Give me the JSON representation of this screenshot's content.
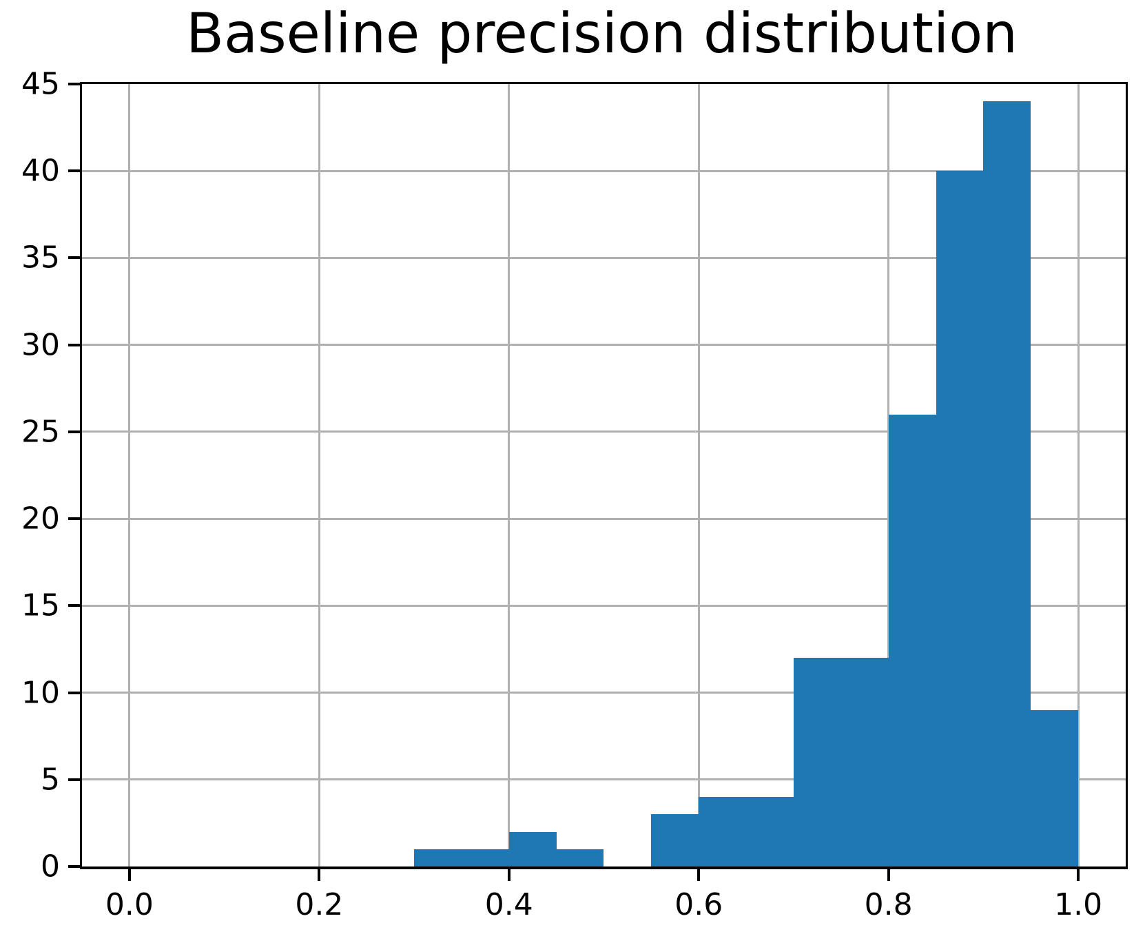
{
  "title": "Baseline precision distribution",
  "chart_data": {
    "type": "bar",
    "subtype": "histogram",
    "title": "Baseline precision distribution",
    "xlabel": "",
    "ylabel": "",
    "bin_start": 0.3,
    "bin_width": 0.05,
    "bin_edges": [
      0.3,
      0.35,
      0.4,
      0.45,
      0.5,
      0.55,
      0.6,
      0.65,
      0.7,
      0.75,
      0.8,
      0.85,
      0.9,
      0.95,
      1.0
    ],
    "values": [
      1,
      1,
      2,
      1,
      0,
      3,
      4,
      4,
      12,
      12,
      26,
      40,
      44,
      9
    ],
    "total_count": 159,
    "xlim": [
      -0.05,
      1.05
    ],
    "ylim": [
      0,
      45
    ],
    "x_ticks": [
      0.0,
      0.2,
      0.4,
      0.6,
      0.8,
      1.0
    ],
    "x_tick_labels": [
      "0.0",
      "0.2",
      "0.4",
      "0.6",
      "0.8",
      "1.0"
    ],
    "y_ticks": [
      0,
      5,
      10,
      15,
      20,
      25,
      30,
      35,
      40,
      45
    ],
    "y_tick_labels": [
      "0",
      "5",
      "10",
      "15",
      "20",
      "25",
      "30",
      "35",
      "40",
      "45"
    ],
    "grid": true,
    "legend": false,
    "bar_color": "#1f77b4",
    "grid_color": "#b0b0b0",
    "axis_color": "#000000",
    "text_color": "#000000",
    "background_color": "#ffffff"
  }
}
